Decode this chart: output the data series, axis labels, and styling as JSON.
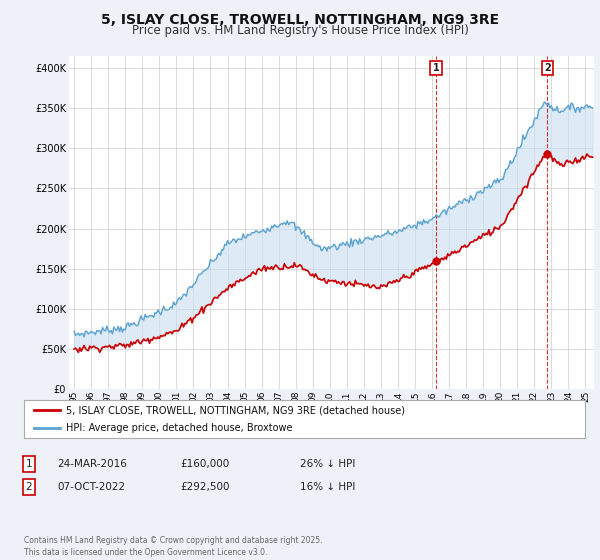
{
  "title": "5, ISLAY CLOSE, TROWELL, NOTTINGHAM, NG9 3RE",
  "subtitle": "Price paid vs. HM Land Registry's House Price Index (HPI)",
  "title_fontsize": 10,
  "subtitle_fontsize": 8.5,
  "ylabel_ticks": [
    "£0",
    "£50K",
    "£100K",
    "£150K",
    "£200K",
    "£250K",
    "£300K",
    "£350K",
    "£400K"
  ],
  "ytick_vals": [
    0,
    50000,
    100000,
    150000,
    200000,
    250000,
    300000,
    350000,
    400000
  ],
  "ylim": [
    0,
    415000
  ],
  "xlim_start": 1994.7,
  "xlim_end": 2025.5,
  "hpi_color": "#5ba3d0",
  "price_color": "#cc0000",
  "fill_color": "#c8dff0",
  "annotation_color": "#cc0000",
  "bg_color": "#eef2f8",
  "plot_bg": "#ffffff",
  "grid_color": "#cccccc",
  "legend_label_price": "5, ISLAY CLOSE, TROWELL, NOTTINGHAM, NG9 3RE (detached house)",
  "legend_label_hpi": "HPI: Average price, detached house, Broxtowe",
  "transactions": [
    {
      "date_year": 2016.23,
      "price": 160000,
      "label": "1"
    },
    {
      "date_year": 2022.77,
      "price": 292500,
      "label": "2"
    }
  ],
  "table_rows": [
    {
      "num": "1",
      "date": "24-MAR-2016",
      "price": "£160,000",
      "change": "26% ↓ HPI"
    },
    {
      "num": "2",
      "date": "07-OCT-2022",
      "price": "£292,500",
      "change": "16% ↓ HPI"
    }
  ],
  "footer": "Contains HM Land Registry data © Crown copyright and database right 2025.\nThis data is licensed under the Open Government Licence v3.0.",
  "xtick_years": [
    1995,
    1996,
    1997,
    1998,
    1999,
    2000,
    2001,
    2002,
    2003,
    2004,
    2005,
    2006,
    2007,
    2008,
    2009,
    2010,
    2011,
    2012,
    2013,
    2014,
    2015,
    2016,
    2017,
    2018,
    2019,
    2020,
    2021,
    2022,
    2023,
    2024,
    2025
  ]
}
